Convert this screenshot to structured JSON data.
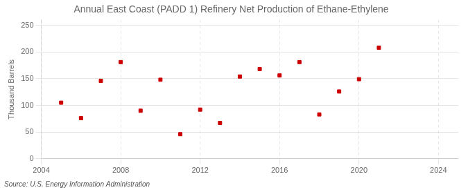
{
  "chart_data": {
    "type": "scatter",
    "title": "Annual East Coast (PADD 1) Refinery Net Production of Ethane-Ethylene",
    "y_label": "Thousand Barrels",
    "annotations": [
      "Source: U.S. Energy Information Administration"
    ],
    "x": [
      2005,
      2006,
      2007,
      2008,
      2009,
      2010,
      2011,
      2012,
      2013,
      2014,
      2015,
      2016,
      2017,
      2018,
      2019,
      2020,
      2021
    ],
    "values": [
      105,
      76,
      146,
      181,
      90,
      148,
      46,
      92,
      67,
      154,
      168,
      156,
      181,
      83,
      126,
      149,
      208
    ],
    "color": "#cc0000",
    "marker": "square",
    "xlim": [
      2004,
      2025
    ],
    "xticks": [
      2004,
      2008,
      2012,
      2016,
      2020,
      2024
    ],
    "ylim": [
      0,
      260
    ],
    "yticks": [
      0,
      50,
      100,
      150,
      200,
      250
    ],
    "grid": true
  }
}
